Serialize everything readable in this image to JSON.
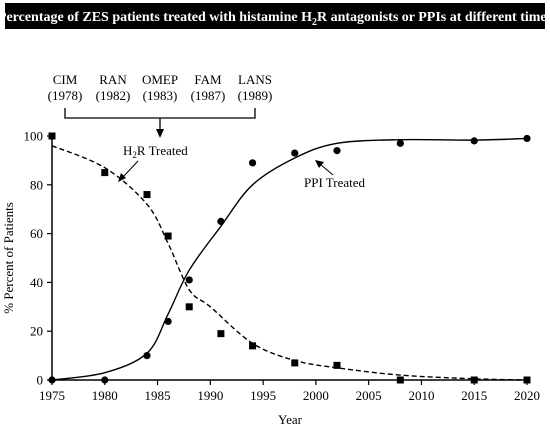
{
  "banner": {
    "title_main": "Percentage of ZES patients treated with histamine H",
    "title_sub": "2",
    "title_rest": "R antagonists or PPIs at different times",
    "bg_color": "#000000",
    "text_color": "#ffffff"
  },
  "drug_labels": [
    {
      "name": "CIM",
      "year_label": "(1978)"
    },
    {
      "name": "RAN",
      "year_label": "(1982)"
    },
    {
      "name": "OMEP",
      "year_label": "(1983)"
    },
    {
      "name": "FAM",
      "year_label": "(1987)"
    },
    {
      "name": "LANS",
      "year_label": "(1989)"
    }
  ],
  "chart_data": {
    "type": "line",
    "xlabel": "Year",
    "ylabel": "% Percent of Patients",
    "xlim": [
      1975,
      2020
    ],
    "ylim": [
      0,
      100
    ],
    "xticks": [
      1975,
      1980,
      1985,
      1990,
      1995,
      2000,
      2005,
      2010,
      2015,
      2020
    ],
    "yticks": [
      0,
      20,
      40,
      60,
      80,
      100
    ],
    "grid": false,
    "series": [
      {
        "name": "H2R Treated",
        "label_main": "H",
        "label_sub": "2",
        "label_rest": "R Treated",
        "marker": "square",
        "line_style": "dashed",
        "points": [
          [
            1975,
            100
          ],
          [
            1980,
            85
          ],
          [
            1984,
            76
          ],
          [
            1986,
            59
          ],
          [
            1988,
            30
          ],
          [
            1991,
            19
          ],
          [
            1994,
            14
          ],
          [
            1998,
            7
          ],
          [
            2002,
            6
          ],
          [
            2008,
            0
          ],
          [
            2015,
            0
          ],
          [
            2020,
            0
          ]
        ],
        "fit": [
          [
            1975,
            96
          ],
          [
            1980,
            87
          ],
          [
            1984,
            72
          ],
          [
            1986,
            56
          ],
          [
            1988,
            37
          ],
          [
            1990,
            30
          ],
          [
            1994,
            15
          ],
          [
            1998,
            8
          ],
          [
            2002,
            5
          ],
          [
            2008,
            2
          ],
          [
            2015,
            0.5
          ],
          [
            2020,
            0
          ]
        ]
      },
      {
        "name": "PPI Treated",
        "marker": "circle",
        "line_style": "solid",
        "points": [
          [
            1975,
            0
          ],
          [
            1980,
            0
          ],
          [
            1984,
            10
          ],
          [
            1986,
            24
          ],
          [
            1988,
            41
          ],
          [
            1991,
            65
          ],
          [
            1994,
            89
          ],
          [
            1998,
            93
          ],
          [
            2002,
            94
          ],
          [
            2008,
            97
          ],
          [
            2015,
            98
          ],
          [
            2020,
            99
          ]
        ],
        "fit": [
          [
            1975,
            0
          ],
          [
            1980,
            3
          ],
          [
            1984,
            11
          ],
          [
            1986,
            27
          ],
          [
            1988,
            45
          ],
          [
            1991,
            63
          ],
          [
            1994,
            80
          ],
          [
            1998,
            91
          ],
          [
            2002,
            97
          ],
          [
            2008,
            98.5
          ],
          [
            2015,
            98.3
          ],
          [
            2020,
            99
          ]
        ]
      }
    ]
  }
}
